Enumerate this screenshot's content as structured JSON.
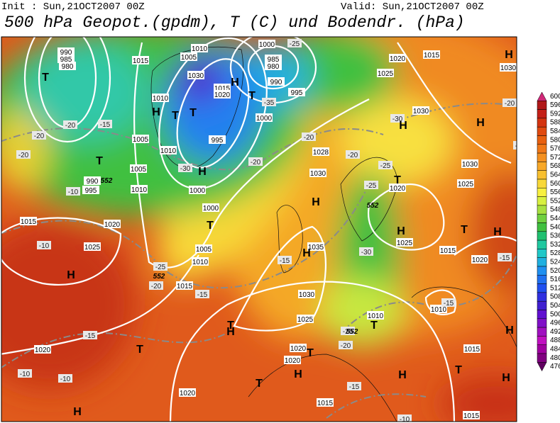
{
  "header": {
    "init": "Init : Sun,21OCT2007 00Z",
    "valid": "Valid: Sun,21OCT2007 00Z",
    "title": "500 hPa Geopot.(gpdm), T (C) und Bodendr. (hPa)"
  },
  "colorbar": {
    "levels": [
      600,
      596,
      592,
      588,
      584,
      580,
      576,
      572,
      568,
      564,
      560,
      556,
      552,
      548,
      544,
      540,
      536,
      532,
      528,
      524,
      520,
      516,
      512,
      508,
      504,
      500,
      496,
      492,
      488,
      484,
      480,
      476
    ],
    "colors": [
      "#d02878",
      "#b01818",
      "#c42018",
      "#d43410",
      "#e04a10",
      "#e86010",
      "#f07818",
      "#f49020",
      "#f8a828",
      "#f8c030",
      "#f8d838",
      "#f8f040",
      "#d8f040",
      "#a8e040",
      "#70d040",
      "#40c040",
      "#20c070",
      "#20c8a0",
      "#20c8c8",
      "#20b0e0",
      "#2090f0",
      "#2070f0",
      "#2050f0",
      "#3030e0",
      "#4020d0",
      "#6010d0",
      "#8010c8",
      "#a010c0",
      "#c010c0",
      "#a000a0",
      "#800080",
      "#600060"
    ]
  },
  "map": {
    "isobar_labels": [
      990,
      985,
      980,
      1015,
      1010,
      1005,
      1030,
      1015,
      1020,
      985,
      980,
      990,
      995,
      1000,
      1010,
      1005,
      1010,
      995,
      1000,
      1005,
      1000,
      1010,
      1000,
      1005,
      1010,
      1015,
      1015,
      1020,
      1025,
      1020,
      1020,
      1035,
      1030,
      1025,
      1020,
      1020,
      1015,
      1020,
      1025,
      1015,
      1030,
      1030,
      1028,
      1030,
      1020,
      1025,
      1030,
      1025,
      1015,
      1020,
      1010,
      1010,
      1015,
      1015,
      990,
      995
    ],
    "temperature_labels": [
      -20,
      -15,
      -20,
      -20,
      -10,
      -10,
      -25,
      -20,
      -15,
      -15,
      -15,
      -10,
      -10,
      -20,
      -15,
      -10,
      -30,
      -25,
      -35,
      -30,
      -20,
      -20,
      -25,
      -30,
      -15,
      -15,
      -20,
      -15,
      -25,
      -20,
      -25
    ],
    "pressure_centers": [
      "H",
      "T",
      "H",
      "T",
      "T",
      "T",
      "H",
      "T",
      "H",
      "H",
      "T",
      "H",
      "T",
      "T",
      "H",
      "H",
      "T",
      "H",
      "T",
      "H",
      "H",
      "T",
      "H",
      "T",
      "T",
      "H",
      "H",
      "H",
      "T",
      "H",
      "H"
    ],
    "height_labels": [
      552,
      552,
      552,
      552
    ]
  }
}
